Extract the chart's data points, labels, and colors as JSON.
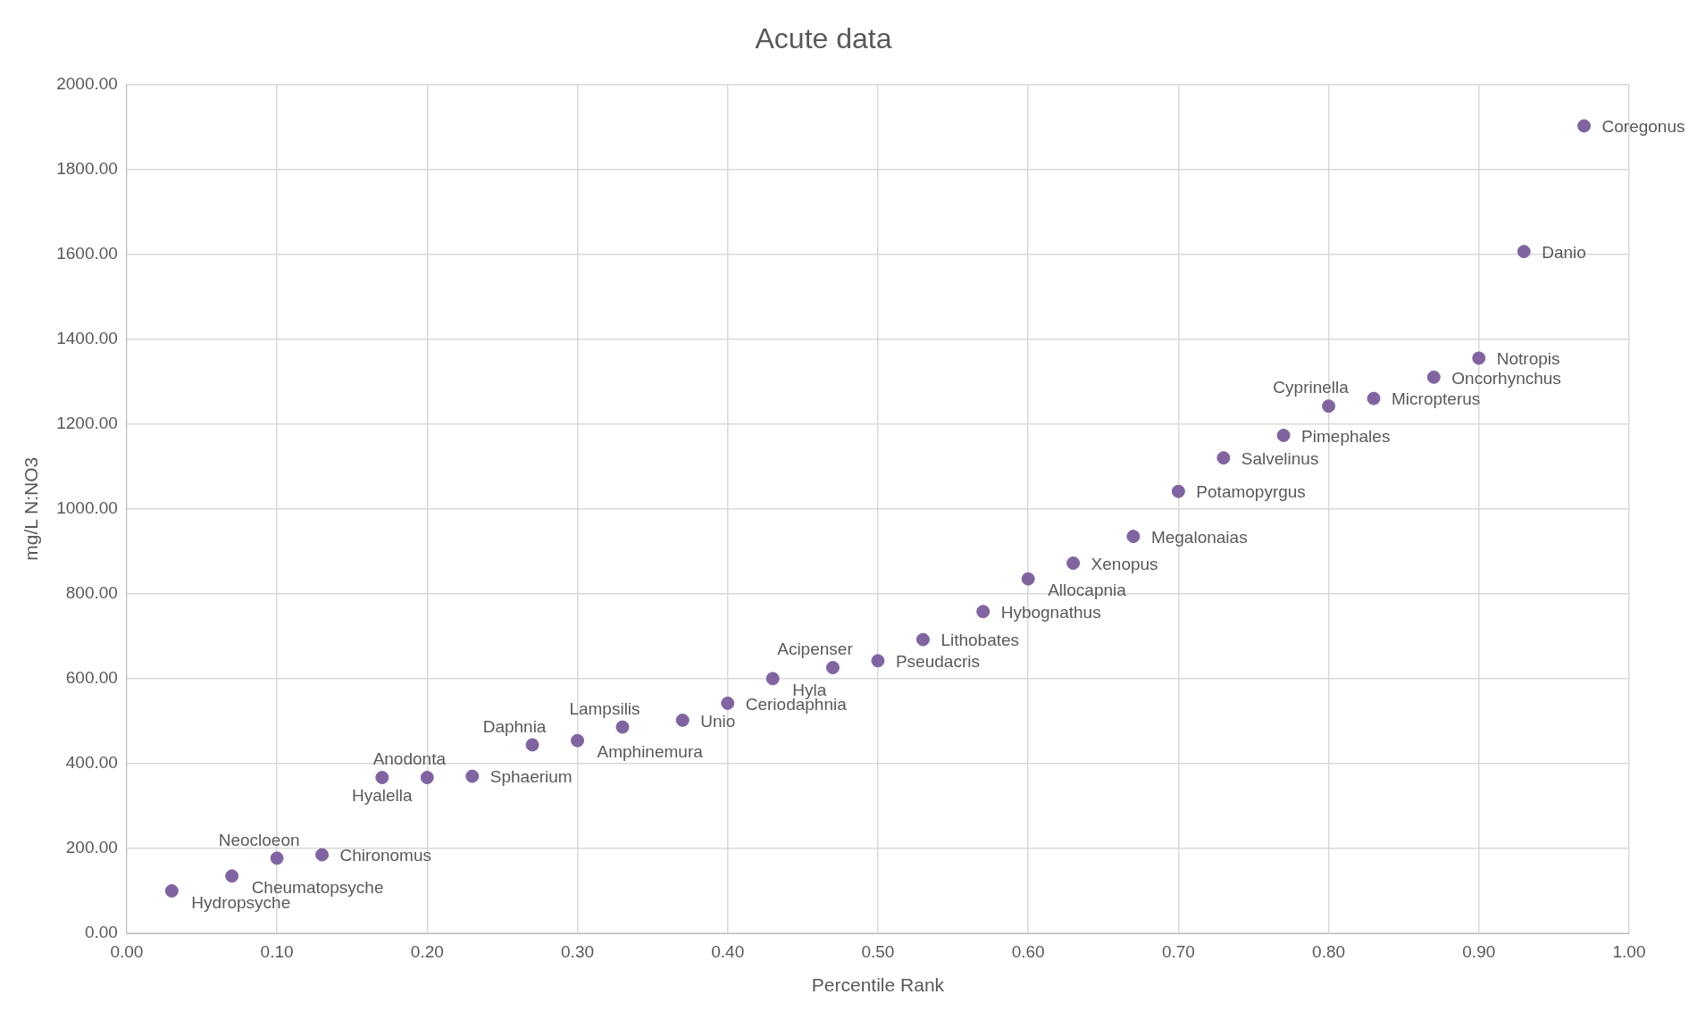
{
  "chart_data": {
    "type": "scatter",
    "title": "Acute data",
    "xlabel": "Percentile Rank",
    "ylabel": "mg/L N:NO3",
    "x": [
      0.03,
      0.07,
      0.1,
      0.13,
      0.17,
      0.2,
      0.23,
      0.27,
      0.3,
      0.33,
      0.37,
      0.4,
      0.43,
      0.47,
      0.5,
      0.53,
      0.57,
      0.6,
      0.63,
      0.67,
      0.7,
      0.73,
      0.77,
      0.8,
      0.83,
      0.87,
      0.9,
      0.93,
      0.97
    ],
    "series": [
      {
        "color": "#8064a2",
        "values": [
          100,
          135,
          177,
          185,
          367,
          367,
          370,
          444,
          454,
          486,
          502,
          542,
          600,
          626,
          642,
          692,
          758,
          835,
          872,
          935,
          1041,
          1120,
          1173,
          1242,
          1260,
          1310,
          1355,
          1606,
          1902
        ]
      }
    ],
    "marker": "circle",
    "grid": true,
    "legend": false,
    "xlim": [
      0,
      1
    ],
    "ylim": [
      0,
      2000
    ],
    "xticks": [
      {
        "value": 0,
        "label": "0.00"
      },
      {
        "value": 0.1,
        "label": "0.10"
      },
      {
        "value": 0.2,
        "label": "0.20"
      },
      {
        "value": 0.3,
        "label": "0.30"
      },
      {
        "value": 0.4,
        "label": "0.40"
      },
      {
        "value": 0.5,
        "label": "0.50"
      },
      {
        "value": 0.6,
        "label": "0.60"
      },
      {
        "value": 0.7,
        "label": "0.70"
      },
      {
        "value": 0.8,
        "label": "0.80"
      },
      {
        "value": 0.9,
        "label": "0.90"
      },
      {
        "value": 1,
        "label": "1.00"
      }
    ],
    "yticks": [
      {
        "value": 0,
        "label": "0.00"
      },
      {
        "value": 200,
        "label": "200.00"
      },
      {
        "value": 400,
        "label": "400.00"
      },
      {
        "value": 600,
        "label": "600.00"
      },
      {
        "value": 800,
        "label": "800.00"
      },
      {
        "value": 1000,
        "label": "1000.00"
      },
      {
        "value": 1200,
        "label": "1200.00"
      },
      {
        "value": 1400,
        "label": "1400.00"
      },
      {
        "value": 1600,
        "label": "1600.00"
      },
      {
        "value": 1800,
        "label": "1800.00"
      },
      {
        "value": 2000,
        "label": "2000.00"
      }
    ],
    "annotations": [
      {
        "text": "Hydropsyche",
        "x": 0.03,
        "y": 100
      },
      {
        "text": "Cheumatopsyche",
        "x": 0.07,
        "y": 135
      },
      {
        "text": "Neocloeon",
        "x": 0.1,
        "y": 177
      },
      {
        "text": "Chironomus",
        "x": 0.13,
        "y": 185
      },
      {
        "text": "Hyalella",
        "x": 0.17,
        "y": 367
      },
      {
        "text": "Anodonta",
        "x": 0.2,
        "y": 367
      },
      {
        "text": "Sphaerium",
        "x": 0.23,
        "y": 370
      },
      {
        "text": "Daphnia",
        "x": 0.27,
        "y": 444
      },
      {
        "text": "Amphinemura",
        "x": 0.3,
        "y": 454
      },
      {
        "text": "Lampsilis",
        "x": 0.33,
        "y": 486
      },
      {
        "text": "Unio",
        "x": 0.37,
        "y": 502
      },
      {
        "text": "Ceriodaphnia",
        "x": 0.4,
        "y": 542
      },
      {
        "text": "Hyla",
        "x": 0.43,
        "y": 600
      },
      {
        "text": "Acipenser",
        "x": 0.47,
        "y": 626
      },
      {
        "text": "Pseudacris",
        "x": 0.5,
        "y": 642
      },
      {
        "text": "Lithobates",
        "x": 0.53,
        "y": 692
      },
      {
        "text": "Hybognathus",
        "x": 0.57,
        "y": 758
      },
      {
        "text": "Allocapnia",
        "x": 0.6,
        "y": 835
      },
      {
        "text": "Xenopus",
        "x": 0.63,
        "y": 872
      },
      {
        "text": "Megalonaias",
        "x": 0.67,
        "y": 935
      },
      {
        "text": "Potamopyrgus",
        "x": 0.7,
        "y": 1041
      },
      {
        "text": "Salvelinus",
        "x": 0.73,
        "y": 1120
      },
      {
        "text": "Pimephales",
        "x": 0.77,
        "y": 1173
      },
      {
        "text": "Cyprinella",
        "x": 0.8,
        "y": 1242
      },
      {
        "text": "Micropterus",
        "x": 0.83,
        "y": 1260
      },
      {
        "text": "Oncorhynchus",
        "x": 0.87,
        "y": 1310
      },
      {
        "text": "Notropis",
        "x": 0.9,
        "y": 1355
      },
      {
        "text": "Danio",
        "x": 0.93,
        "y": 1606
      },
      {
        "text": "Coregonus",
        "x": 0.97,
        "y": 1902
      }
    ]
  }
}
